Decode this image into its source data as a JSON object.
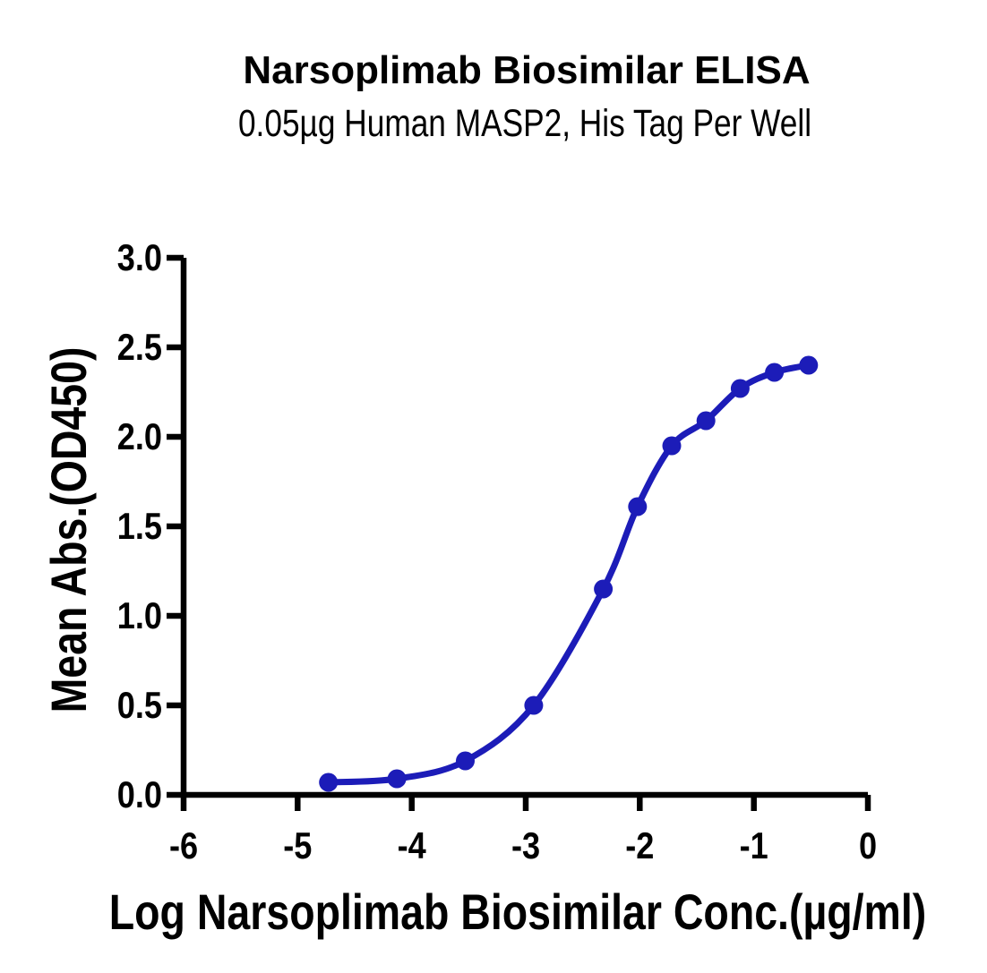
{
  "figure": {
    "title": "Narsoplimab Biosimilar ELISA",
    "subtitle": "0.05µg Human MASP2, His Tag Per Well"
  },
  "chart_data": {
    "type": "scatter",
    "title": "Narsoplimab Biosimilar ELISA",
    "subtitle": "0.05µg Human MASP2, His Tag Per Well",
    "xlabel": "Log Narsoplimab Biosimilar Conc.(µg/ml)",
    "ylabel": "Mean Abs.(OD450)",
    "xlim": [
      -6,
      0
    ],
    "ylim": [
      0,
      3
    ],
    "x_ticks": [
      -6,
      -5,
      -4,
      -3,
      -2,
      -1,
      0
    ],
    "x_tick_labels": [
      "-6",
      "-5",
      "-4",
      "-3",
      "-2",
      "-1",
      "0"
    ],
    "y_ticks": [
      0,
      0.5,
      1,
      1.5,
      2,
      2.5,
      3
    ],
    "y_tick_labels": [
      "0.0",
      "0.5",
      "1.0",
      "1.5",
      "2.0",
      "2.5",
      "3.0"
    ],
    "grid": false,
    "legend_position": "none",
    "colors": {
      "curve": "#1c1cb8",
      "axis": "#000000"
    },
    "series": [
      {
        "name": "Narsoplimab Biosimilar",
        "marker": "circle",
        "line": "sigmoid-fit",
        "color": "#1c1cb8",
        "x": [
          -4.73,
          -4.13,
          -3.53,
          -2.93,
          -2.32,
          -2.02,
          -1.72,
          -1.42,
          -1.12,
          -0.82,
          -0.52
        ],
        "y": [
          0.07,
          0.09,
          0.19,
          0.5,
          1.15,
          1.61,
          1.95,
          2.09,
          2.27,
          2.36,
          2.4
        ]
      }
    ]
  }
}
